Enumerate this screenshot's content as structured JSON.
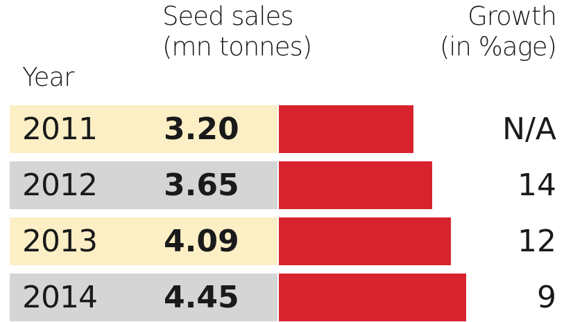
{
  "chart_data": {
    "type": "bar",
    "orientation": "horizontal",
    "columns": {
      "year": "Year",
      "sales_line1": "Seed sales",
      "sales_line2": "(mn tonnes)",
      "growth_line1": "Growth",
      "growth_line2": "(in %age)"
    },
    "categories": [
      "2011",
      "2012",
      "2013",
      "2014"
    ],
    "values": [
      3.2,
      3.65,
      4.09,
      4.45
    ],
    "value_labels": [
      "3.20",
      "3.65",
      "4.09",
      "4.45"
    ],
    "growth": [
      "N/A",
      "14",
      "12",
      "9"
    ],
    "xlim": [
      0,
      4.45
    ],
    "colors": {
      "bar": "#d8232e",
      "row_odd": "#fcefc6",
      "row_even": "#d5d5d5"
    }
  }
}
